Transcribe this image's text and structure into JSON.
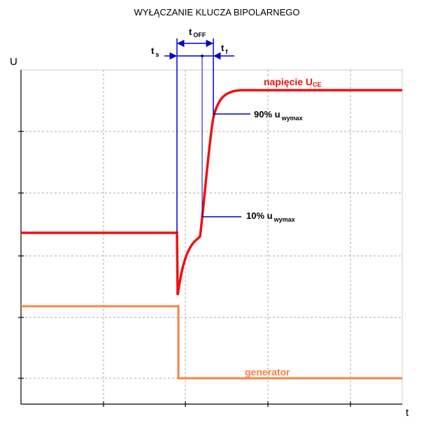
{
  "title": "WYŁĄCZANIE KLUCZA BIPOLARNEGO",
  "axes": {
    "y": "U",
    "x": "t"
  },
  "annotations": {
    "t_off": {
      "main": "t",
      "sub": "OFF"
    },
    "t_s": {
      "main": "t",
      "sub": "s"
    },
    "t_f": {
      "main": "t",
      "sub": "f"
    },
    "uce": {
      "main": "napięcie U",
      "sub": "CE"
    },
    "p90": {
      "main": "90% u",
      "sub": "wymax"
    },
    "p10": {
      "main": "10% u",
      "sub": "wymax"
    },
    "generator": "generator"
  }
}
